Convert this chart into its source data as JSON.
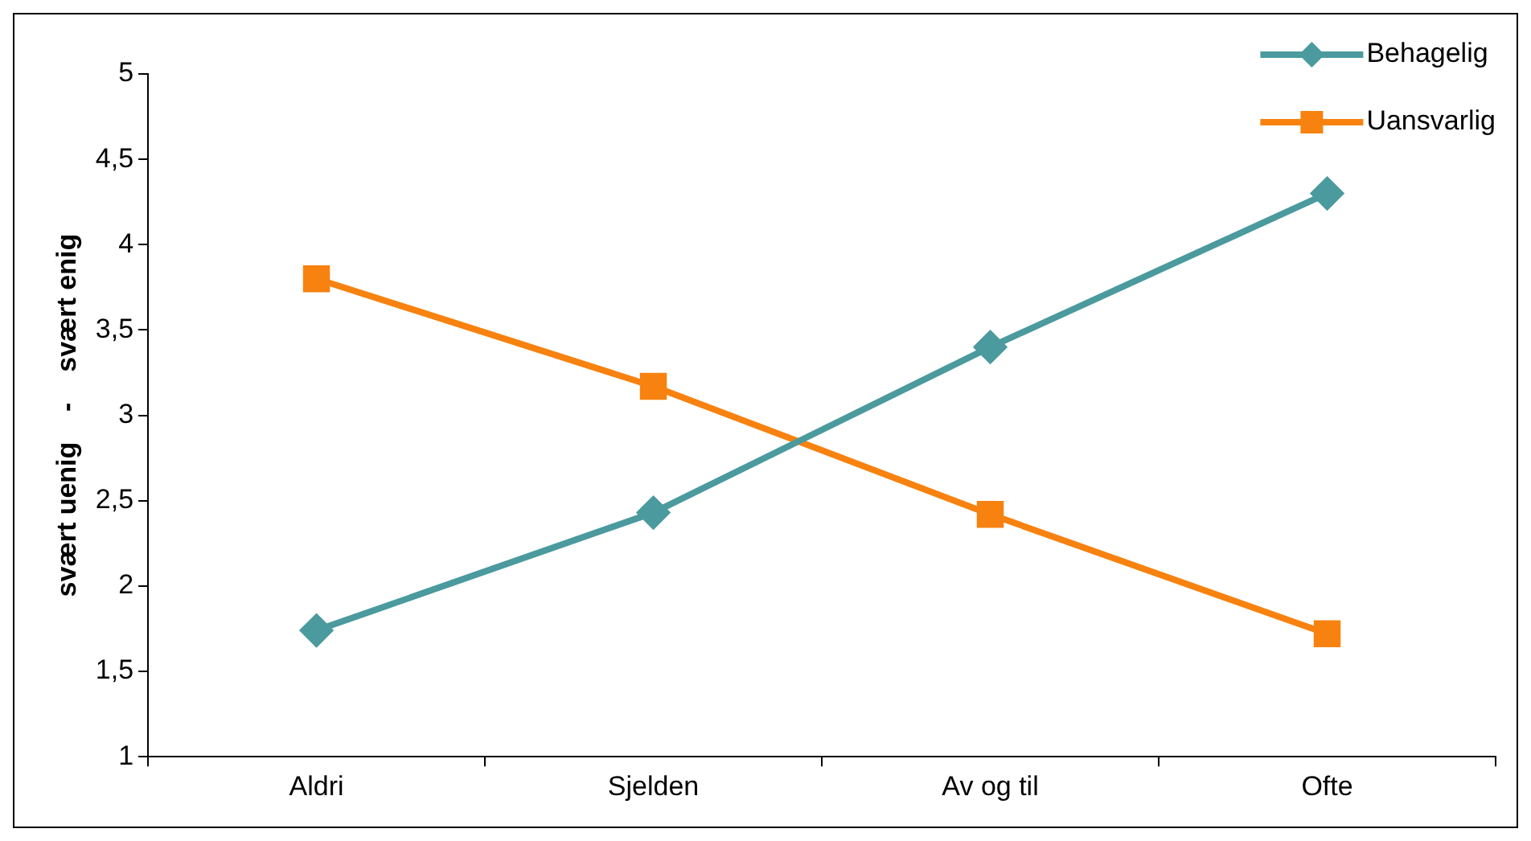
{
  "chart_data": {
    "type": "line",
    "ylabel": "svært uenig    -    svært enig",
    "categories": [
      "Aldri",
      "Sjelden",
      "Av og til",
      "Ofte"
    ],
    "series": [
      {
        "name": "Behagelig",
        "color": "#4a9a9e",
        "marker": "diamond",
        "values": [
          1.74,
          2.43,
          3.4,
          4.3
        ]
      },
      {
        "name": "Uansvarlig",
        "color": "#f7820f",
        "marker": "square",
        "values": [
          3.8,
          3.17,
          2.42,
          1.72
        ]
      }
    ],
    "ylim": [
      1,
      5
    ],
    "yticks": [
      1,
      {
        "value": 1.5,
        "label": "1,5"
      },
      2,
      {
        "value": 2.5,
        "label": "2,5"
      },
      3,
      {
        "value": 3.5,
        "label": "3,5"
      },
      4,
      {
        "value": 4.5,
        "label": "4,5"
      },
      5
    ],
    "grid": false,
    "legend": "top right",
    "line_style": "solid"
  }
}
